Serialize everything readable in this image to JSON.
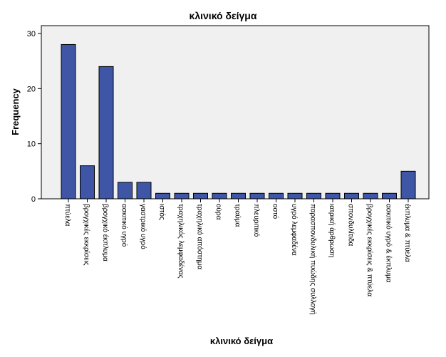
{
  "chart_data": {
    "type": "bar",
    "title": "κλινικό δείγμα",
    "xlabel": "κλινικό δείγμα",
    "ylabel": "Frequency",
    "ylim": [
      0,
      30
    ],
    "yticks": [
      0,
      10,
      20,
      30
    ],
    "grid": false,
    "categories": [
      "πτύελα",
      "βρογχικές εκκρίσεις",
      "βρογχικό έκπλυμα",
      "ασκιτικό υγρό",
      "γαστρικό υγρό",
      "ιστός",
      "τραχηλικός λεμφαδένας",
      "τραχηλικό απόστημα",
      "ούρα",
      "τραύμα",
      "πλευριτικό",
      "οστό",
      "υγρό λεμφαδένα",
      "παρασπονδυλική πυώδης συλλογή",
      "ιατρική άρθρωση",
      "σπονδυλίτιδα",
      "βρογχικές εκκρίσεις & πτύελα",
      "ασκιτικό υγρό & έκπλυμα",
      "έκπλυμα & πτύελα"
    ],
    "values": [
      28,
      6,
      24,
      3,
      3,
      1,
      1,
      1,
      1,
      1,
      1,
      1,
      1,
      1,
      1,
      1,
      1,
      1,
      5
    ],
    "colors": {
      "bar_fill": "#3f56a6",
      "bar_stroke": "#000000",
      "plot_background": "#f0f0f0",
      "axis": "#000000"
    }
  }
}
